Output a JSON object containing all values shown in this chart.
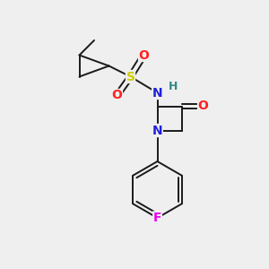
{
  "bg_color": "#efefef",
  "bond_color": "#1a1a1a",
  "bond_width": 1.4,
  "atom_colors": {
    "S": "#cccc00",
    "N": "#2020dd",
    "O": "#ff2020",
    "F": "#ee00ee",
    "H": "#338888",
    "C": "#1a1a1a"
  },
  "font_size_atom": 9,
  "figsize": [
    3.0,
    3.0
  ],
  "dpi": 100,
  "xlim": [
    0,
    10
  ],
  "ylim": [
    0,
    10
  ]
}
